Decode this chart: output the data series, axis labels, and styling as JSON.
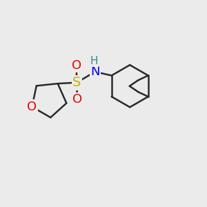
{
  "bg_color": "#ebebeb",
  "line_color": "#2a2a2a",
  "line_width": 1.8,
  "S_color": "#c8b400",
  "O_color": "#ee0000",
  "N_color": "#0000ee",
  "H_color": "#3a8888",
  "font_size_S": 14,
  "font_size_O": 13,
  "font_size_N": 13,
  "font_size_H": 11,
  "fig_width": 3.0,
  "fig_height": 3.0,
  "dpi": 100,
  "xlim": [
    0,
    10
  ],
  "ylim": [
    0,
    10
  ]
}
